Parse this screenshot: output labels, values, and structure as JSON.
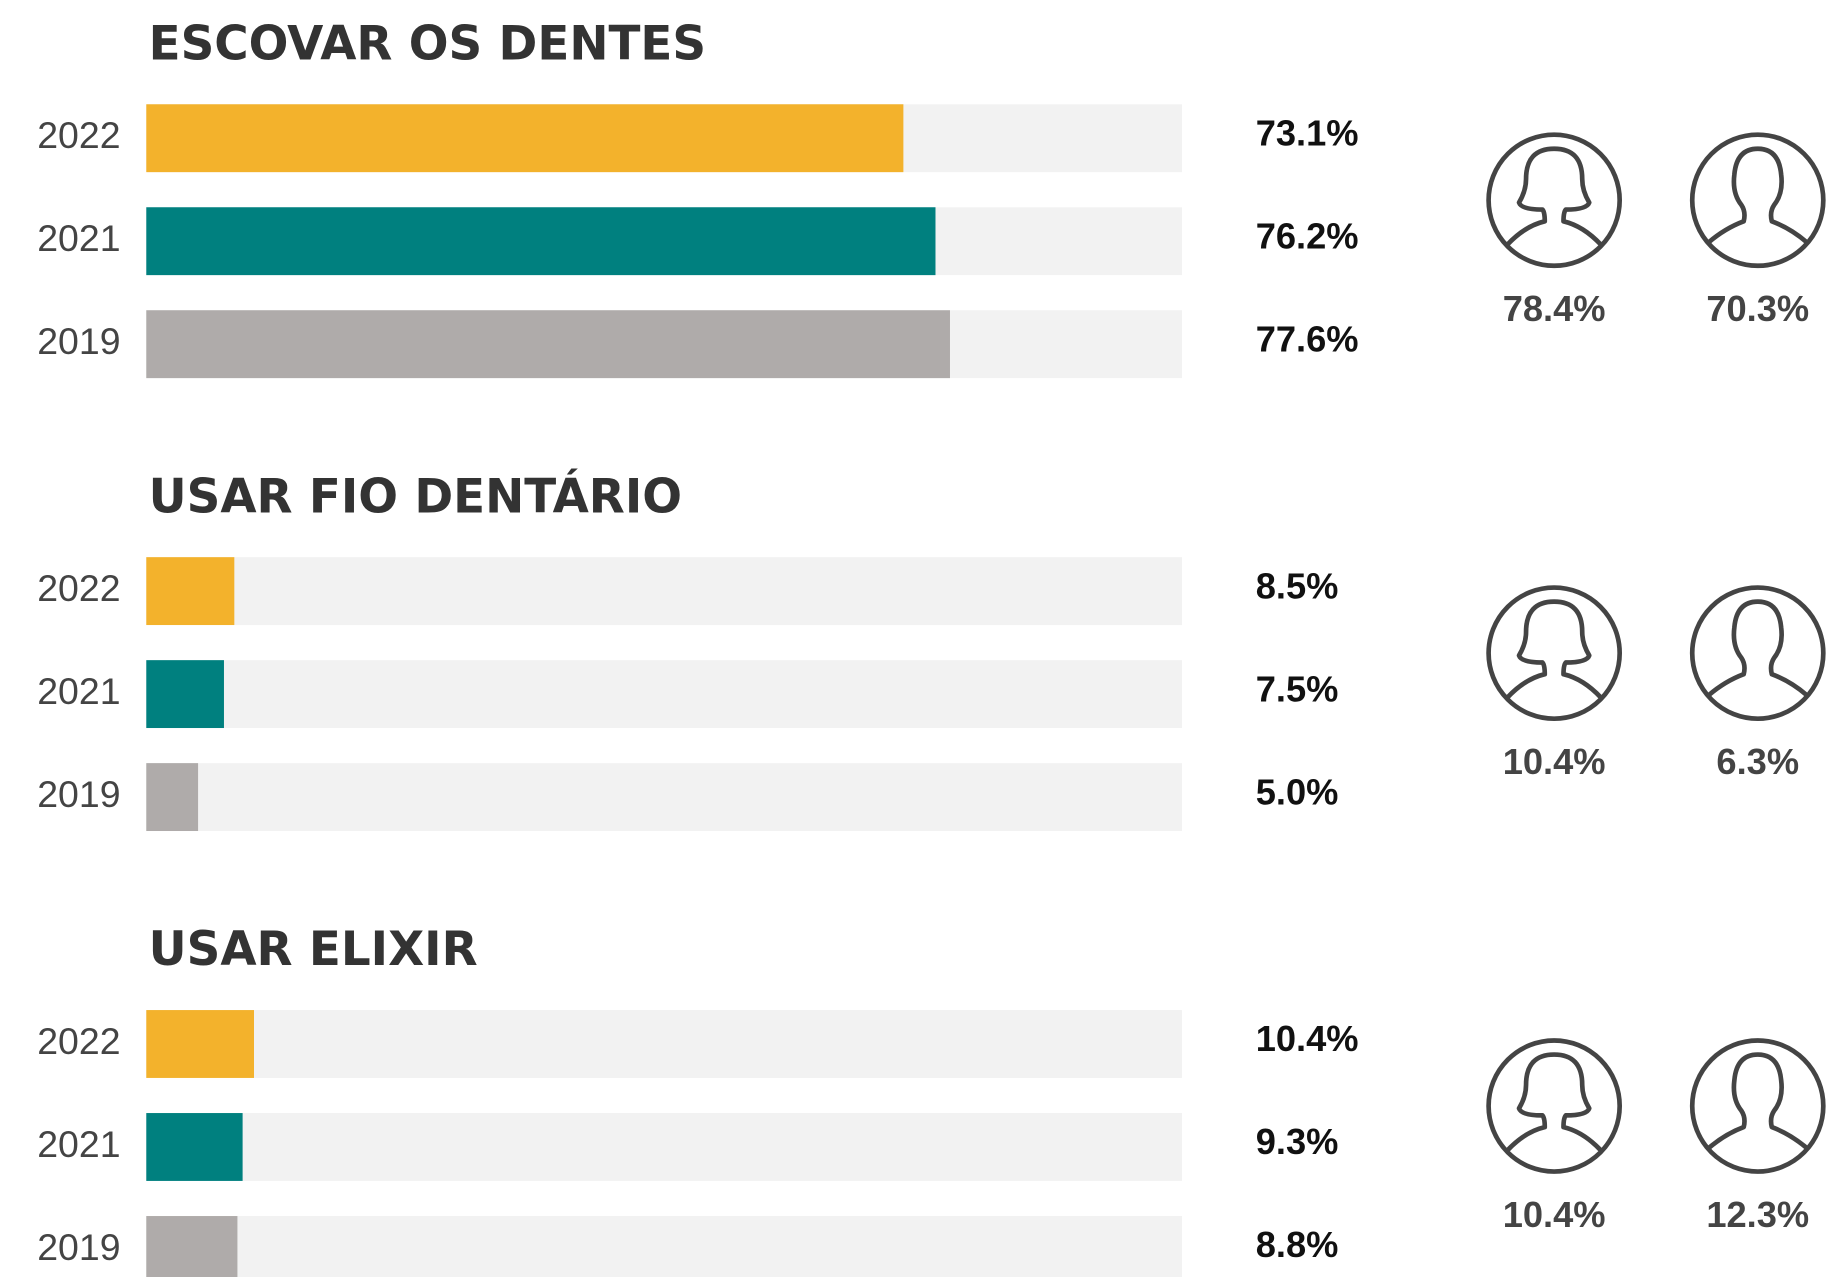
{
  "chart_data": [
    {
      "type": "bar",
      "title": "ESCOVAR OS DENTES",
      "categories": [
        "2022",
        "2021",
        "2019"
      ],
      "values": [
        73.1,
        76.2,
        77.6
      ],
      "value_labels": [
        "73.1%",
        "76.2%",
        "77.6%"
      ],
      "colors": [
        "#f3b22c",
        "#00807f",
        "#afabaa"
      ],
      "xlim": [
        0,
        100
      ],
      "icon_labels": [
        "78.4%",
        "70.3%"
      ]
    },
    {
      "type": "bar",
      "title": "USAR FIO DENTÁRIO",
      "categories": [
        "2022",
        "2021",
        "2019"
      ],
      "values": [
        8.5,
        7.5,
        5.0
      ],
      "value_labels": [
        "8.5%",
        "7.5%",
        "5.0%"
      ],
      "colors": [
        "#f3b22c",
        "#00807f",
        "#afabaa"
      ],
      "xlim": [
        0,
        100
      ],
      "icon_labels": [
        "10.4%",
        "6.3%"
      ]
    },
    {
      "type": "bar",
      "title": "USAR ELIXIR",
      "categories": [
        "2022",
        "2021",
        "2019"
      ],
      "values": [
        10.4,
        9.3,
        8.8
      ],
      "value_labels": [
        "10.4%",
        "9.3%",
        "8.8%"
      ],
      "colors": [
        "#f3b22c",
        "#00807f",
        "#afabaa"
      ],
      "xlim": [
        0,
        100
      ],
      "icon_labels": [
        "10.4%",
        "12.3%"
      ]
    }
  ]
}
